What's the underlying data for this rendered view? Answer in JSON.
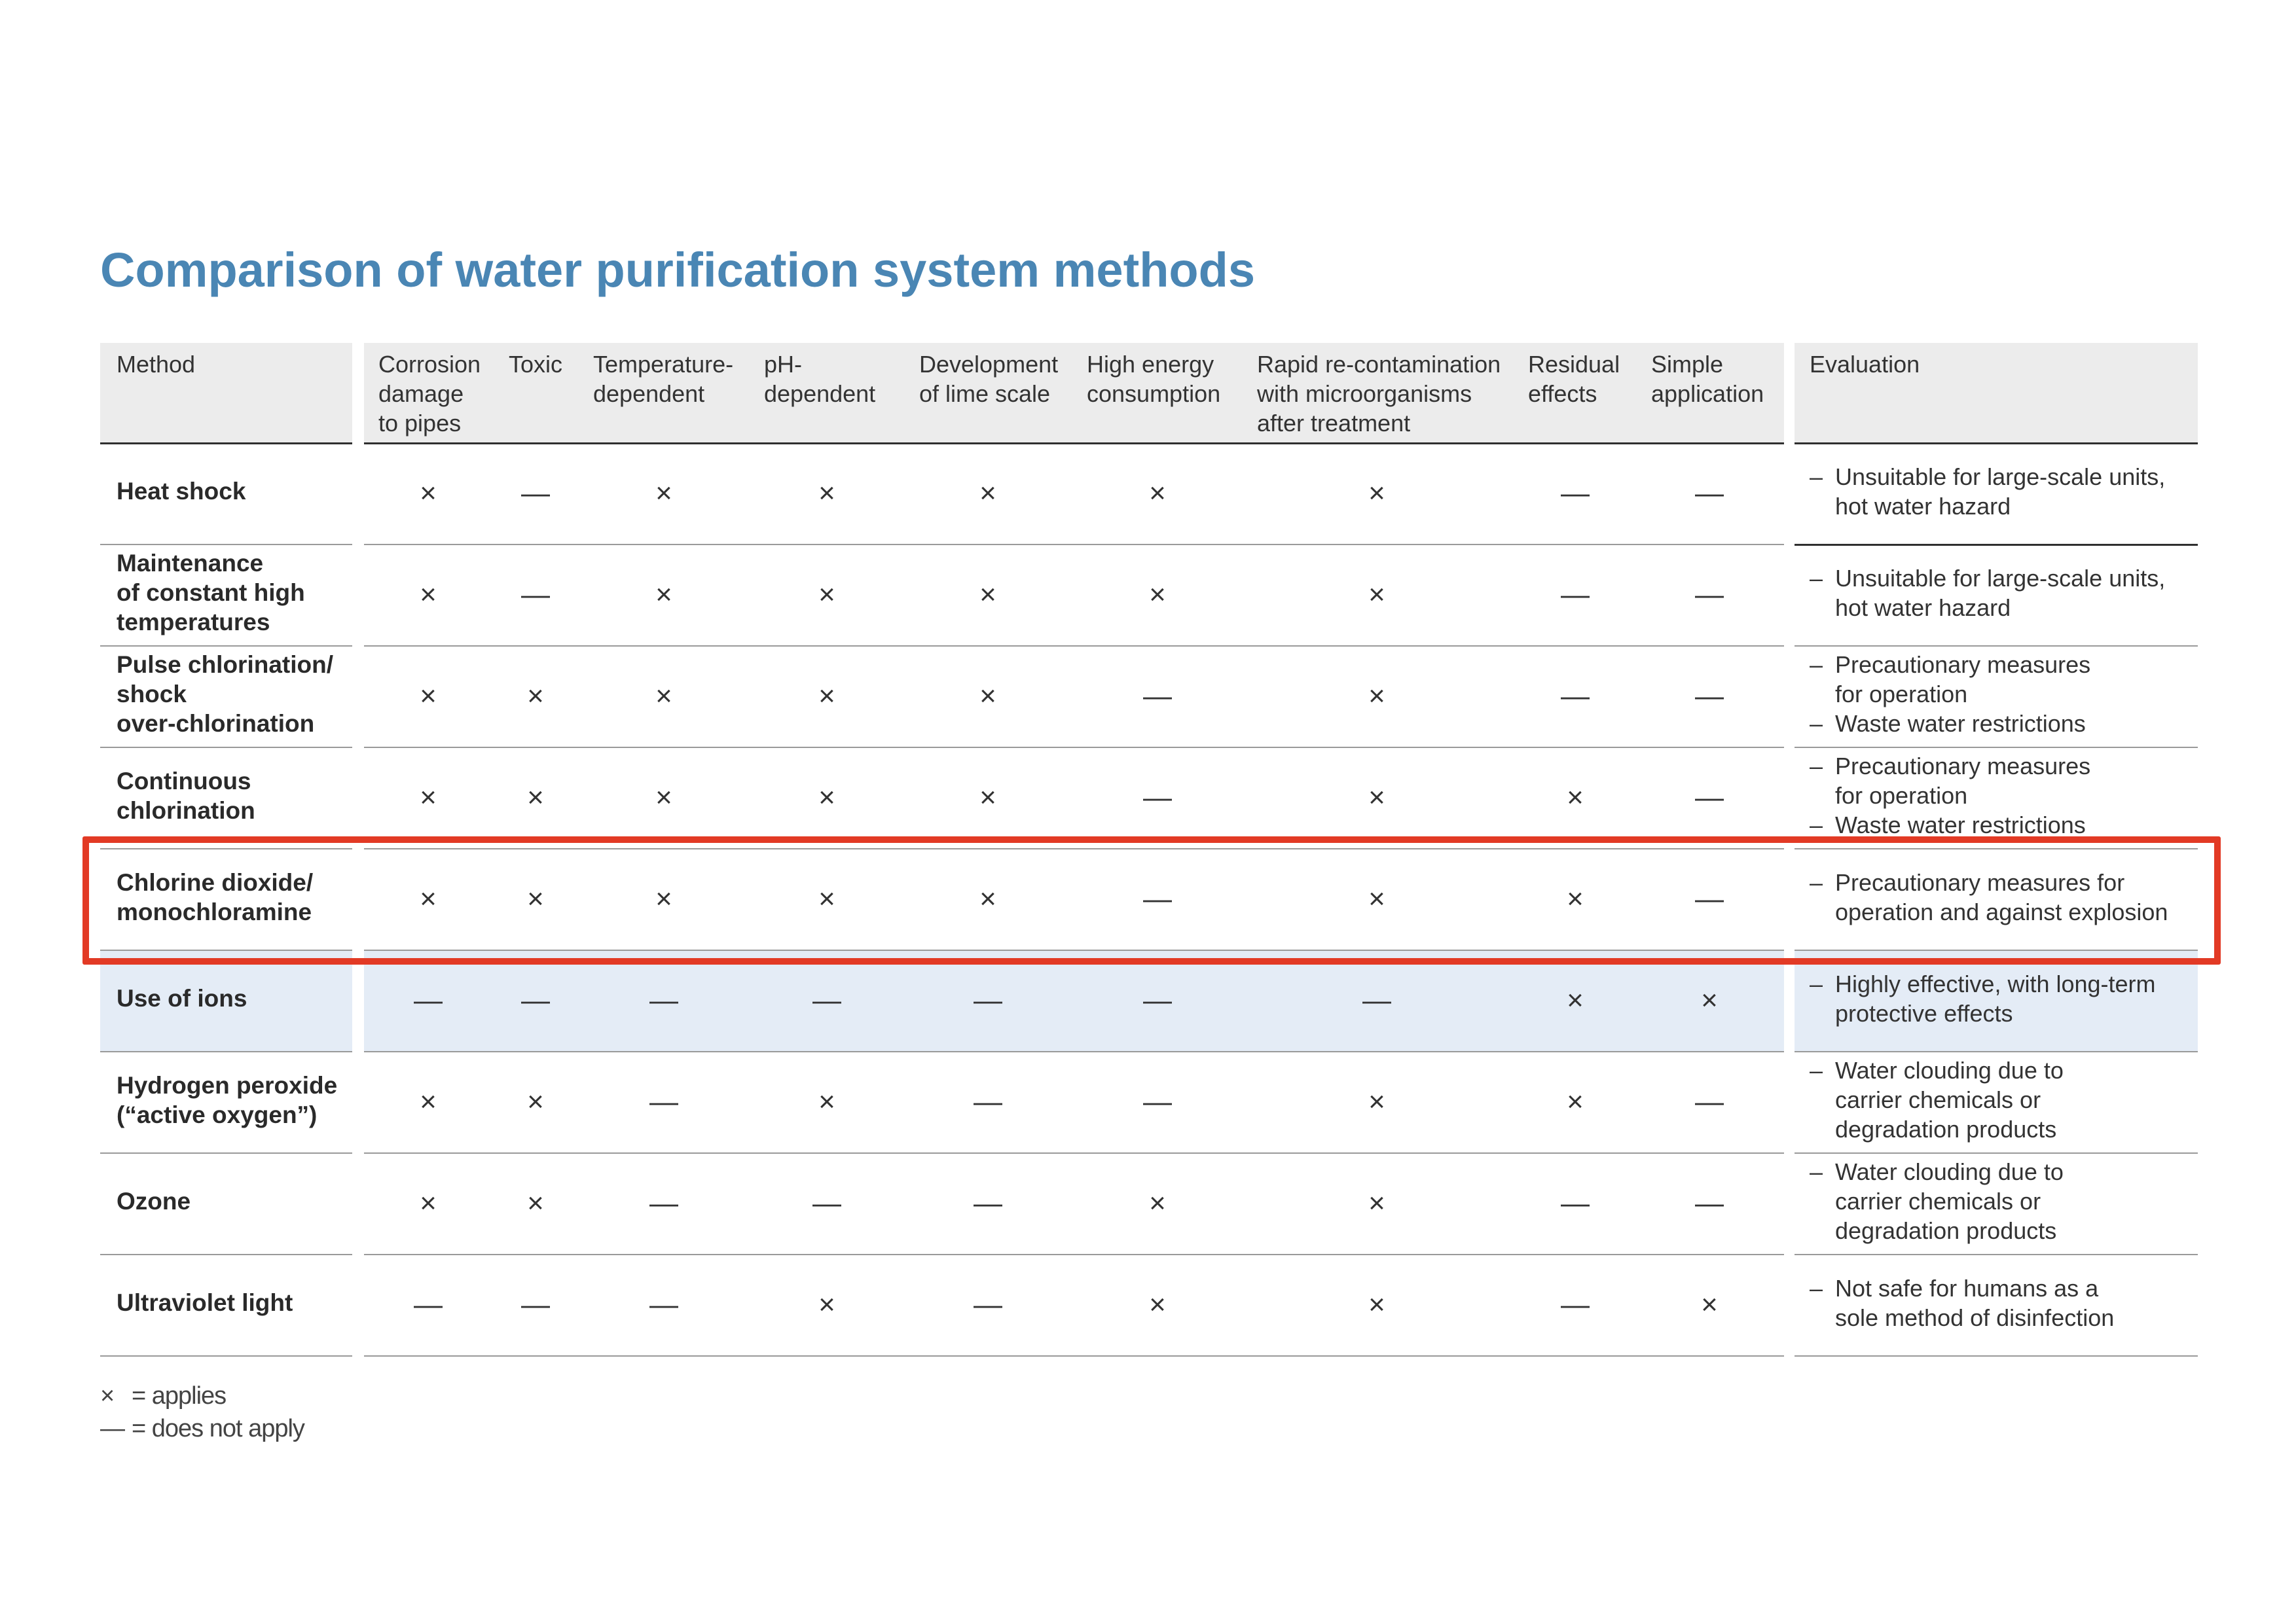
{
  "title": "Comparison of water purification system methods",
  "headers": {
    "method": [
      "Method"
    ],
    "columns": [
      [
        "Corrosion",
        "damage",
        "to pipes"
      ],
      [
        "Toxic"
      ],
      [
        "Temperature-",
        "dependent"
      ],
      [
        "pH-",
        "dependent"
      ],
      [
        "Development",
        "of lime scale"
      ],
      [
        "High energy",
        "consumption"
      ],
      [
        "Rapid re-contamination",
        "with microorganisms",
        "after treatment"
      ],
      [
        "Residual",
        "effects"
      ],
      [
        "Simple",
        "application"
      ]
    ],
    "evaluation": [
      "Evaluation"
    ]
  },
  "symbols": {
    "applies": "×",
    "not_applies": "—"
  },
  "rows": [
    {
      "name": [
        "Heat shock"
      ],
      "marks": [
        1,
        0,
        1,
        1,
        1,
        1,
        1,
        0,
        0
      ],
      "evaluation": [
        [
          "Unsuitable for large-scale units,",
          "hot water hazard"
        ]
      ]
    },
    {
      "name": [
        "Maintenance",
        "of constant high",
        "temperatures"
      ],
      "marks": [
        1,
        0,
        1,
        1,
        1,
        1,
        1,
        0,
        0
      ],
      "evaluation": [
        [
          "Unsuitable for large-scale units,",
          "hot water hazard"
        ]
      ]
    },
    {
      "name": [
        "Pulse chlorination/",
        "shock",
        "over-chlorination"
      ],
      "marks": [
        1,
        1,
        1,
        1,
        1,
        0,
        1,
        0,
        0
      ],
      "evaluation": [
        [
          "Precautionary measures",
          "for operation"
        ],
        [
          "Waste water restrictions"
        ]
      ]
    },
    {
      "name": [
        "Continuous",
        "chlorination"
      ],
      "marks": [
        1,
        1,
        1,
        1,
        1,
        0,
        1,
        1,
        0
      ],
      "evaluation": [
        [
          "Precautionary measures",
          "for operation"
        ],
        [
          "Waste water restrictions"
        ]
      ]
    },
    {
      "name": [
        "Chlorine dioxide/",
        "monochloramine"
      ],
      "marks": [
        1,
        1,
        1,
        1,
        1,
        0,
        1,
        1,
        0
      ],
      "evaluation": [
        [
          "Precautionary measures for",
          "operation and against explosion"
        ]
      ],
      "highlighted": true
    },
    {
      "name": [
        "Use of ions"
      ],
      "marks": [
        0,
        0,
        0,
        0,
        0,
        0,
        0,
        1,
        1
      ],
      "evaluation": [
        [
          "Highly effective, with long-term",
          "protective effects"
        ]
      ],
      "shaded": true
    },
    {
      "name": [
        "Hydrogen peroxide",
        "(“active oxygen”)"
      ],
      "marks": [
        1,
        1,
        0,
        1,
        0,
        0,
        1,
        1,
        0
      ],
      "evaluation": [
        [
          "Water clouding due to",
          "carrier chemicals or",
          "degradation products"
        ]
      ]
    },
    {
      "name": [
        "Ozone"
      ],
      "marks": [
        1,
        1,
        0,
        0,
        0,
        1,
        1,
        0,
        0
      ],
      "evaluation": [
        [
          "Water clouding due to",
          "carrier chemicals or",
          "degradation products"
        ]
      ]
    },
    {
      "name": [
        "Ultraviolet light"
      ],
      "marks": [
        0,
        0,
        0,
        1,
        0,
        1,
        1,
        0,
        1
      ],
      "evaluation": [
        [
          "Not safe for humans as a",
          "sole method of disinfection"
        ]
      ]
    }
  ],
  "legend": [
    {
      "symbol": "×",
      "text": "= applies"
    },
    {
      "symbol": "—",
      "text": "= does not apply"
    }
  ],
  "colors": {
    "title": "#4a86b4",
    "highlight": "#e23a25",
    "shaded_row": "#e4ecf6"
  }
}
